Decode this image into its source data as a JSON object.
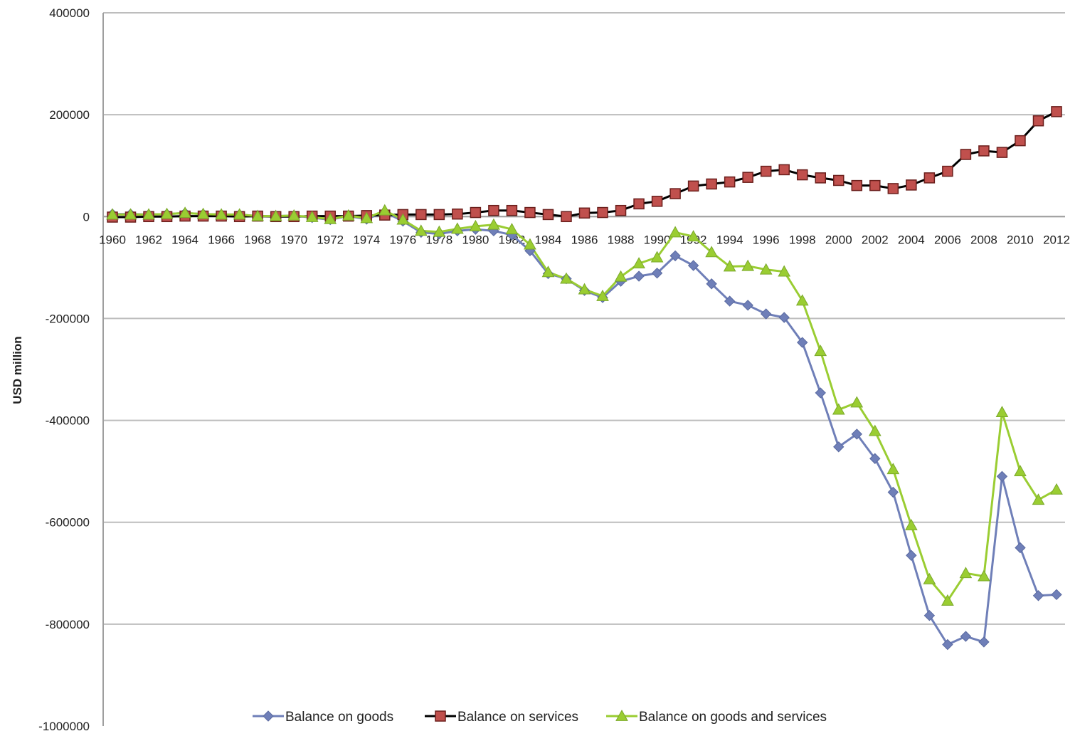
{
  "chart_data": {
    "type": "line",
    "ylabel": "USD million",
    "xlabel": "",
    "ylim": [
      -1000000,
      400000
    ],
    "y_ticks": [
      "400000",
      "200000",
      "0",
      "-200000",
      "-400000",
      "-600000",
      "-800000",
      "-1000000"
    ],
    "x": [
      1960,
      1961,
      1962,
      1963,
      1964,
      1965,
      1966,
      1967,
      1968,
      1969,
      1970,
      1971,
      1972,
      1973,
      1974,
      1975,
      1976,
      1977,
      1978,
      1979,
      1980,
      1981,
      1982,
      1983,
      1984,
      1985,
      1986,
      1987,
      1988,
      1989,
      1990,
      1991,
      1992,
      1993,
      1994,
      1995,
      1996,
      1997,
      1998,
      1999,
      2000,
      2001,
      2002,
      2003,
      2004,
      2005,
      2006,
      2007,
      2008,
      2009,
      2010,
      2011,
      2012
    ],
    "x_tick_labels": [
      "1960",
      "1962",
      "1964",
      "1966",
      "1968",
      "1970",
      "1972",
      "1974",
      "1976",
      "1978",
      "1980",
      "1982",
      "1984",
      "1986",
      "1988",
      "1990",
      "1992",
      "1994",
      "1996",
      "1998",
      "2000",
      "2002",
      "2004",
      "2006",
      "2008",
      "2010",
      "2012"
    ],
    "grid": true,
    "legend_position": "bottom",
    "series": [
      {
        "name": "Balance on goods",
        "color": "#6f7fb8",
        "marker": "diamond",
        "values": [
          5000,
          5000,
          4000,
          5000,
          7000,
          5000,
          4000,
          4000,
          1000,
          1000,
          2000,
          -2000,
          -6000,
          1000,
          -5000,
          9000,
          -9000,
          -31000,
          -34000,
          -28000,
          -25000,
          -28000,
          -36000,
          -67000,
          -112000,
          -122000,
          -145000,
          -159000,
          -127000,
          -117000,
          -111000,
          -77000,
          -96000,
          -132000,
          -166000,
          -174000,
          -191000,
          -198000,
          -247000,
          -346000,
          -452000,
          -427000,
          -475000,
          -541000,
          -665000,
          -783000,
          -840000,
          -824000,
          -835000,
          -510000,
          -650000,
          -744000,
          -742000
        ]
      },
      {
        "name": "Balance on services",
        "color": "#c0504d",
        "line_color": "#000000",
        "marker": "square",
        "values": [
          -1000,
          -1000,
          0,
          0,
          1000,
          1000,
          1000,
          0,
          1000,
          0,
          0,
          1000,
          1000,
          1000,
          2000,
          3000,
          4000,
          4000,
          4000,
          5000,
          8000,
          12000,
          12000,
          8000,
          4000,
          0,
          7000,
          8000,
          12000,
          25000,
          30000,
          45000,
          60000,
          64000,
          68000,
          77000,
          89000,
          92000,
          82000,
          76000,
          71000,
          61000,
          61000,
          55000,
          62000,
          76000,
          89000,
          122000,
          129000,
          126000,
          149000,
          188000,
          206000
        ]
      },
      {
        "name": "Balance on goods and services",
        "color": "#9acd32",
        "marker": "triangle",
        "values": [
          4000,
          4000,
          4000,
          5000,
          7000,
          5000,
          4000,
          4000,
          1000,
          1000,
          2000,
          -1000,
          -5000,
          2000,
          -3000,
          12000,
          -6000,
          -28000,
          -30000,
          -24000,
          -19000,
          -16000,
          -25000,
          -55000,
          -109000,
          -122000,
          -143000,
          -156000,
          -118000,
          -92000,
          -80000,
          -31000,
          -39000,
          -70000,
          -98000,
          -97000,
          -104000,
          -108000,
          -165000,
          -264000,
          -379000,
          -365000,
          -421000,
          -496000,
          -606000,
          -712000,
          -754000,
          -700000,
          -706000,
          -384000,
          -500000,
          -556000,
          -536000
        ]
      }
    ]
  }
}
